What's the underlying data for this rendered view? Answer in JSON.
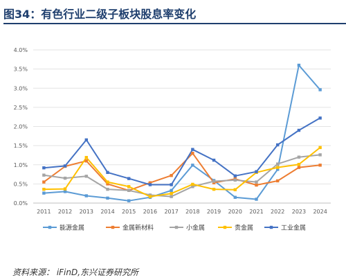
{
  "title": "图34：有色行业二级子板块股息率变化",
  "source": "资料来源：  iFinD,东兴证券研究所",
  "chart_data": {
    "type": "line",
    "x": [
      "2011",
      "2012",
      "2013",
      "2014",
      "2015",
      "2016",
      "2017",
      "2018",
      "2019",
      "2020",
      "2021",
      "2022",
      "2023",
      "2024"
    ],
    "ylim": [
      0,
      4.0
    ],
    "yticks": [
      "0.0%",
      "0.5%",
      "1.0%",
      "1.5%",
      "2.0%",
      "2.5%",
      "3.0%",
      "3.5%",
      "4.0%"
    ],
    "grid": true,
    "legend_position": "bottom",
    "series": [
      {
        "name": "能源金属",
        "color": "#5b9bd5",
        "values": [
          0.26,
          0.3,
          0.19,
          0.13,
          0.06,
          0.15,
          0.33,
          0.99,
          0.59,
          0.15,
          0.1,
          0.88,
          3.6,
          2.96
        ]
      },
      {
        "name": "金属新材料",
        "color": "#ed7d31",
        "values": [
          0.55,
          0.96,
          1.1,
          0.5,
          0.33,
          0.53,
          0.72,
          1.3,
          0.53,
          0.63,
          0.47,
          0.58,
          0.93,
          0.99
        ]
      },
      {
        "name": "小金属",
        "color": "#a5a5a5",
        "values": [
          0.73,
          0.65,
          0.7,
          0.36,
          0.33,
          0.21,
          0.17,
          0.43,
          0.57,
          0.6,
          0.55,
          1.02,
          1.2,
          1.26
        ]
      },
      {
        "name": "贵金属",
        "color": "#ffc000",
        "values": [
          0.36,
          0.37,
          1.19,
          0.55,
          0.43,
          0.17,
          0.25,
          0.49,
          0.36,
          0.35,
          0.8,
          0.93,
          1.01,
          1.45
        ]
      },
      {
        "name": "工业金属",
        "color": "#4472c4",
        "values": [
          0.92,
          0.97,
          1.65,
          0.8,
          0.64,
          0.48,
          0.48,
          1.4,
          1.12,
          0.71,
          0.82,
          1.52,
          1.9,
          2.22
        ]
      }
    ]
  }
}
